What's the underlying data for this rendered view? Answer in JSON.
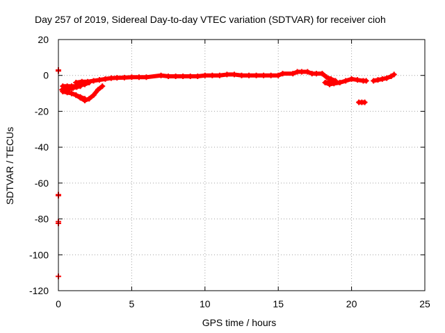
{
  "chart_data": {
    "type": "scatter",
    "title": "Day 257 of 2019, Sidereal Day-to-day VTEC variation (SDTVAR) for receiver cioh",
    "xlabel": "GPS time / hours",
    "ylabel": "SDTVAR / TECUs",
    "xlim": [
      0,
      25
    ],
    "ylim": [
      -120,
      20
    ],
    "xticks": [
      0,
      5,
      10,
      15,
      20,
      25
    ],
    "yticks": [
      20,
      0,
      -20,
      -40,
      -60,
      -80,
      -100,
      -120
    ],
    "grid": true,
    "legend": "none",
    "point_color": "#ff0000",
    "series": [
      {
        "name": "",
        "x": [
          0.0,
          0.0,
          0.0,
          0.0,
          0.0,
          0.0,
          0.0,
          0.25,
          0.5,
          0.75,
          1.0,
          1.25,
          1.5,
          0.3,
          0.6,
          0.9,
          1.2,
          1.5,
          1.8,
          0.3,
          0.6,
          0.9,
          1.2,
          1.5,
          1.8,
          2.1,
          0.9,
          1.2,
          1.5,
          1.8,
          2.1,
          2.4,
          2.7,
          3.0,
          1.2,
          1.6,
          2.0,
          2.4,
          2.8,
          3.2,
          3.6,
          4.0,
          4.5,
          5.0,
          5.5,
          6.0,
          7.0,
          7.5,
          8.0,
          8.5,
          9.0,
          9.5,
          10.0,
          10.5,
          11.0,
          11.5,
          12.0,
          12.5,
          13.0,
          13.5,
          14.0,
          14.5,
          15.0,
          15.3,
          16.0,
          16.3,
          16.6,
          17.0,
          17.3,
          17.6,
          18.0,
          18.3,
          18.6,
          18.9,
          18.2,
          18.5,
          18.8,
          19.2,
          19.6,
          20.0,
          20.4,
          20.8,
          21.0,
          20.5,
          20.7,
          20.9,
          21.5,
          21.8,
          22.1,
          22.4,
          22.7,
          22.9
        ],
        "y": [
          3,
          2.5,
          -66.5,
          -67,
          -81.5,
          -82.5,
          -112,
          -8,
          -8,
          -7.5,
          -7,
          -6.5,
          -6,
          -9,
          -9.5,
          -10,
          -11,
          -12,
          -13,
          -6,
          -6,
          -6,
          -6,
          -5.5,
          -5,
          -4,
          -10,
          -11,
          -12.5,
          -14,
          -13,
          -11,
          -8,
          -6,
          -4,
          -3.5,
          -3.5,
          -3,
          -2.5,
          -2,
          -1.5,
          -1.3,
          -1.2,
          -1,
          -1,
          -1,
          0,
          -0.5,
          -0.5,
          -0.5,
          -0.5,
          -0.5,
          0,
          0,
          0,
          0.5,
          0.5,
          0,
          0,
          0,
          0,
          0,
          0,
          1,
          1,
          2,
          2,
          2,
          1,
          1,
          1,
          -1,
          -2,
          -3,
          -4,
          -5,
          -4.5,
          -4,
          -3,
          -2,
          -2.5,
          -3,
          -3,
          -15,
          -15,
          -15,
          -3,
          -2.5,
          -2,
          -1.5,
          -0.5,
          0.5
        ]
      }
    ]
  }
}
